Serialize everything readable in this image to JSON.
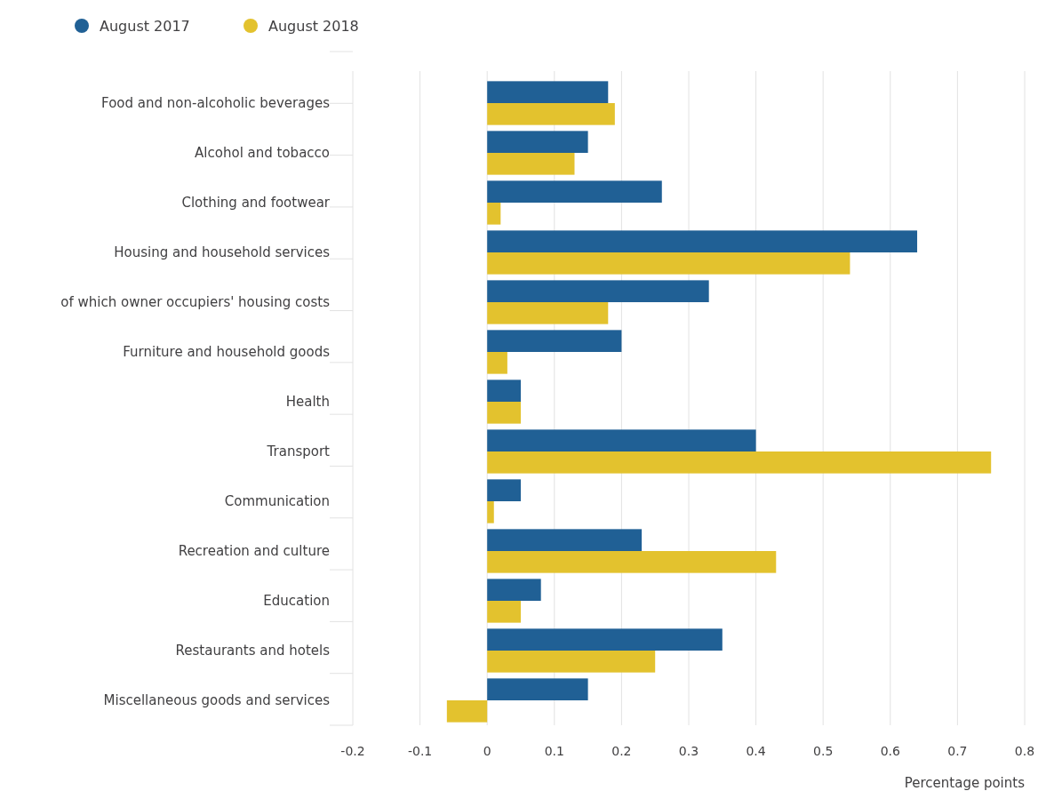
{
  "chart_data": {
    "type": "bar",
    "orientation": "horizontal",
    "xlabel": "Percentage points",
    "categories": [
      "Food and non-alcoholic beverages",
      "Alcohol and tobacco",
      "Clothing and footwear",
      "Housing and household services",
      "of which owner occupiers' housing costs",
      "Furniture and household goods",
      "Health",
      "Transport",
      "Communication",
      "Recreation and culture",
      "Education",
      "Restaurants and hotels",
      "Miscellaneous goods and services"
    ],
    "series": [
      {
        "name": "August 2017",
        "color": "#206095",
        "values": [
          0.18,
          0.15,
          0.26,
          0.64,
          0.33,
          0.2,
          0.05,
          0.4,
          0.05,
          0.23,
          0.08,
          0.35,
          0.15
        ]
      },
      {
        "name": "August 2018",
        "color": "#e3c22e",
        "values": [
          0.19,
          0.13,
          0.02,
          0.54,
          0.18,
          0.03,
          0.05,
          0.75,
          0.01,
          0.43,
          0.05,
          0.25,
          -0.06
        ]
      }
    ],
    "xlim": [
      -0.2,
      0.8
    ],
    "xticks": [
      -0.2,
      -0.1,
      0,
      0.1,
      0.2,
      0.3,
      0.4,
      0.5,
      0.6,
      0.7,
      0.8
    ],
    "grid": "x",
    "legend": "top left"
  }
}
